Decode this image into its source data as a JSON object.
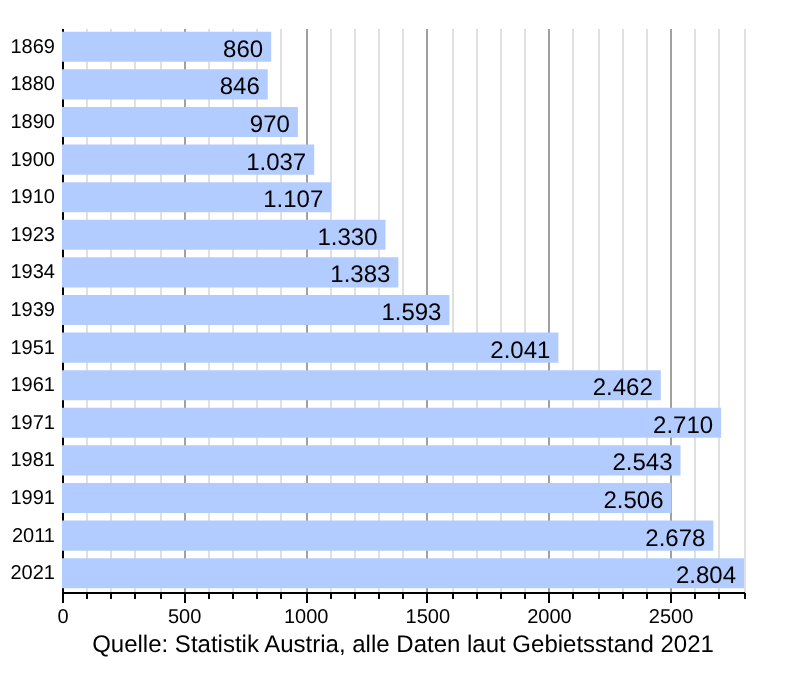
{
  "chart_data": {
    "type": "bar",
    "orientation": "horizontal",
    "categories": [
      "1869",
      "1880",
      "1890",
      "1900",
      "1910",
      "1923",
      "1934",
      "1939",
      "1951",
      "1961",
      "1971",
      "1981",
      "1991",
      "2011",
      "2021"
    ],
    "values": [
      860,
      846,
      970,
      1037,
      1107,
      1330,
      1383,
      1593,
      2041,
      2462,
      2710,
      2543,
      2506,
      2678,
      2804
    ],
    "value_labels": [
      "860",
      "846",
      "970",
      "1.037",
      "1.107",
      "1.330",
      "1.383",
      "1.593",
      "2.041",
      "2.462",
      "2.710",
      "2.543",
      "2.506",
      "2.678",
      "2.804"
    ],
    "color": "#b3ccff",
    "xlim": [
      0,
      2804
    ],
    "xticks": [
      0,
      {
        "value": 100,
        "label": null
      },
      {
        "value": 200,
        "label": null
      },
      {
        "value": 300,
        "label": null
      },
      {
        "value": 400,
        "label": null
      },
      500,
      {
        "value": 600,
        "label": null
      },
      {
        "value": 700,
        "label": null
      },
      {
        "value": 800,
        "label": null
      },
      {
        "value": 900,
        "label": null
      },
      1000,
      {
        "value": 1100,
        "label": null
      },
      {
        "value": 1200,
        "label": null
      },
      {
        "value": 1300,
        "label": null
      },
      {
        "value": 1400,
        "label": null
      },
      1500,
      {
        "value": 1600,
        "label": null
      },
      {
        "value": 1700,
        "label": null
      },
      {
        "value": 1800,
        "label": null
      },
      {
        "value": 1900,
        "label": null
      },
      2000,
      {
        "value": 2100,
        "label": null
      },
      {
        "value": 2200,
        "label": null
      },
      {
        "value": 2300,
        "label": null
      },
      {
        "value": 2400,
        "label": null
      },
      2500,
      {
        "value": 2600,
        "label": null
      },
      {
        "value": 2700,
        "label": null
      },
      {
        "value": 2800,
        "label": null
      }
    ],
    "grid": true,
    "annotations": [
      "Quelle: Statistik Austria, alle Daten laut Gebietsstand 2021"
    ]
  }
}
